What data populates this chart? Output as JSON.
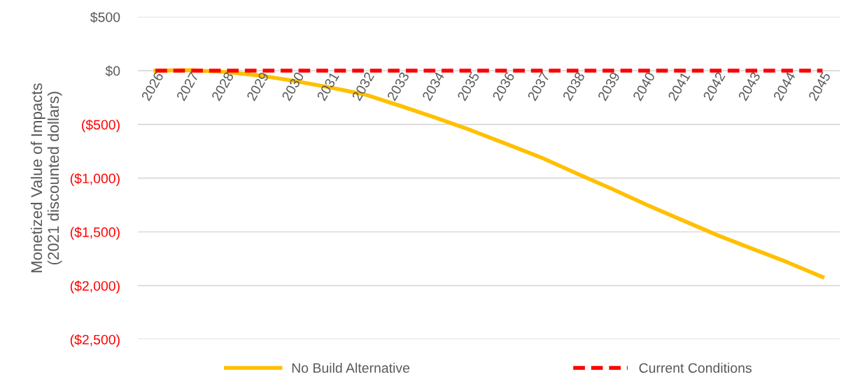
{
  "chart_data": {
    "type": "line",
    "ylabel": "Monetized Value of Impacts\n(2021 discounted dollars)",
    "categories": [
      "2026",
      "2027",
      "2028",
      "2029",
      "2030",
      "2031",
      "2032",
      "2033",
      "2034",
      "2035",
      "2036",
      "2037",
      "2038",
      "2039",
      "2040",
      "2041",
      "2042",
      "2043",
      "2044",
      "2045"
    ],
    "series": [
      {
        "name": "No Build Alternative",
        "color": "#ffc000",
        "line_style": "solid",
        "values": [
          0,
          5,
          -13,
          -46,
          -98,
          -158,
          -225,
          -330,
          -440,
          -556,
          -682,
          -810,
          -957,
          -1100,
          -1249,
          -1390,
          -1530,
          -1657,
          -1783,
          -1920
        ]
      },
      {
        "name": "Current Conditions",
        "color": "#ff0000",
        "line_style": "dashed",
        "values": [
          0,
          0,
          0,
          0,
          0,
          0,
          0,
          0,
          0,
          0,
          0,
          0,
          0,
          0,
          0,
          0,
          0,
          0,
          0,
          0
        ]
      }
    ],
    "ylim": [
      -2500,
      500
    ],
    "yticks": [
      {
        "value": 500,
        "label": "$500"
      },
      {
        "value": 0,
        "label": "$0"
      },
      {
        "value": -500,
        "label": "($500)"
      },
      {
        "value": -1000,
        "label": "($1,000)"
      },
      {
        "value": -1500,
        "label": "($1,500)"
      },
      {
        "value": -2000,
        "label": "($2,000)"
      },
      {
        "value": -2500,
        "label": "($2,500)"
      }
    ],
    "grid": "y",
    "legend": "bottom",
    "marker": "none"
  }
}
